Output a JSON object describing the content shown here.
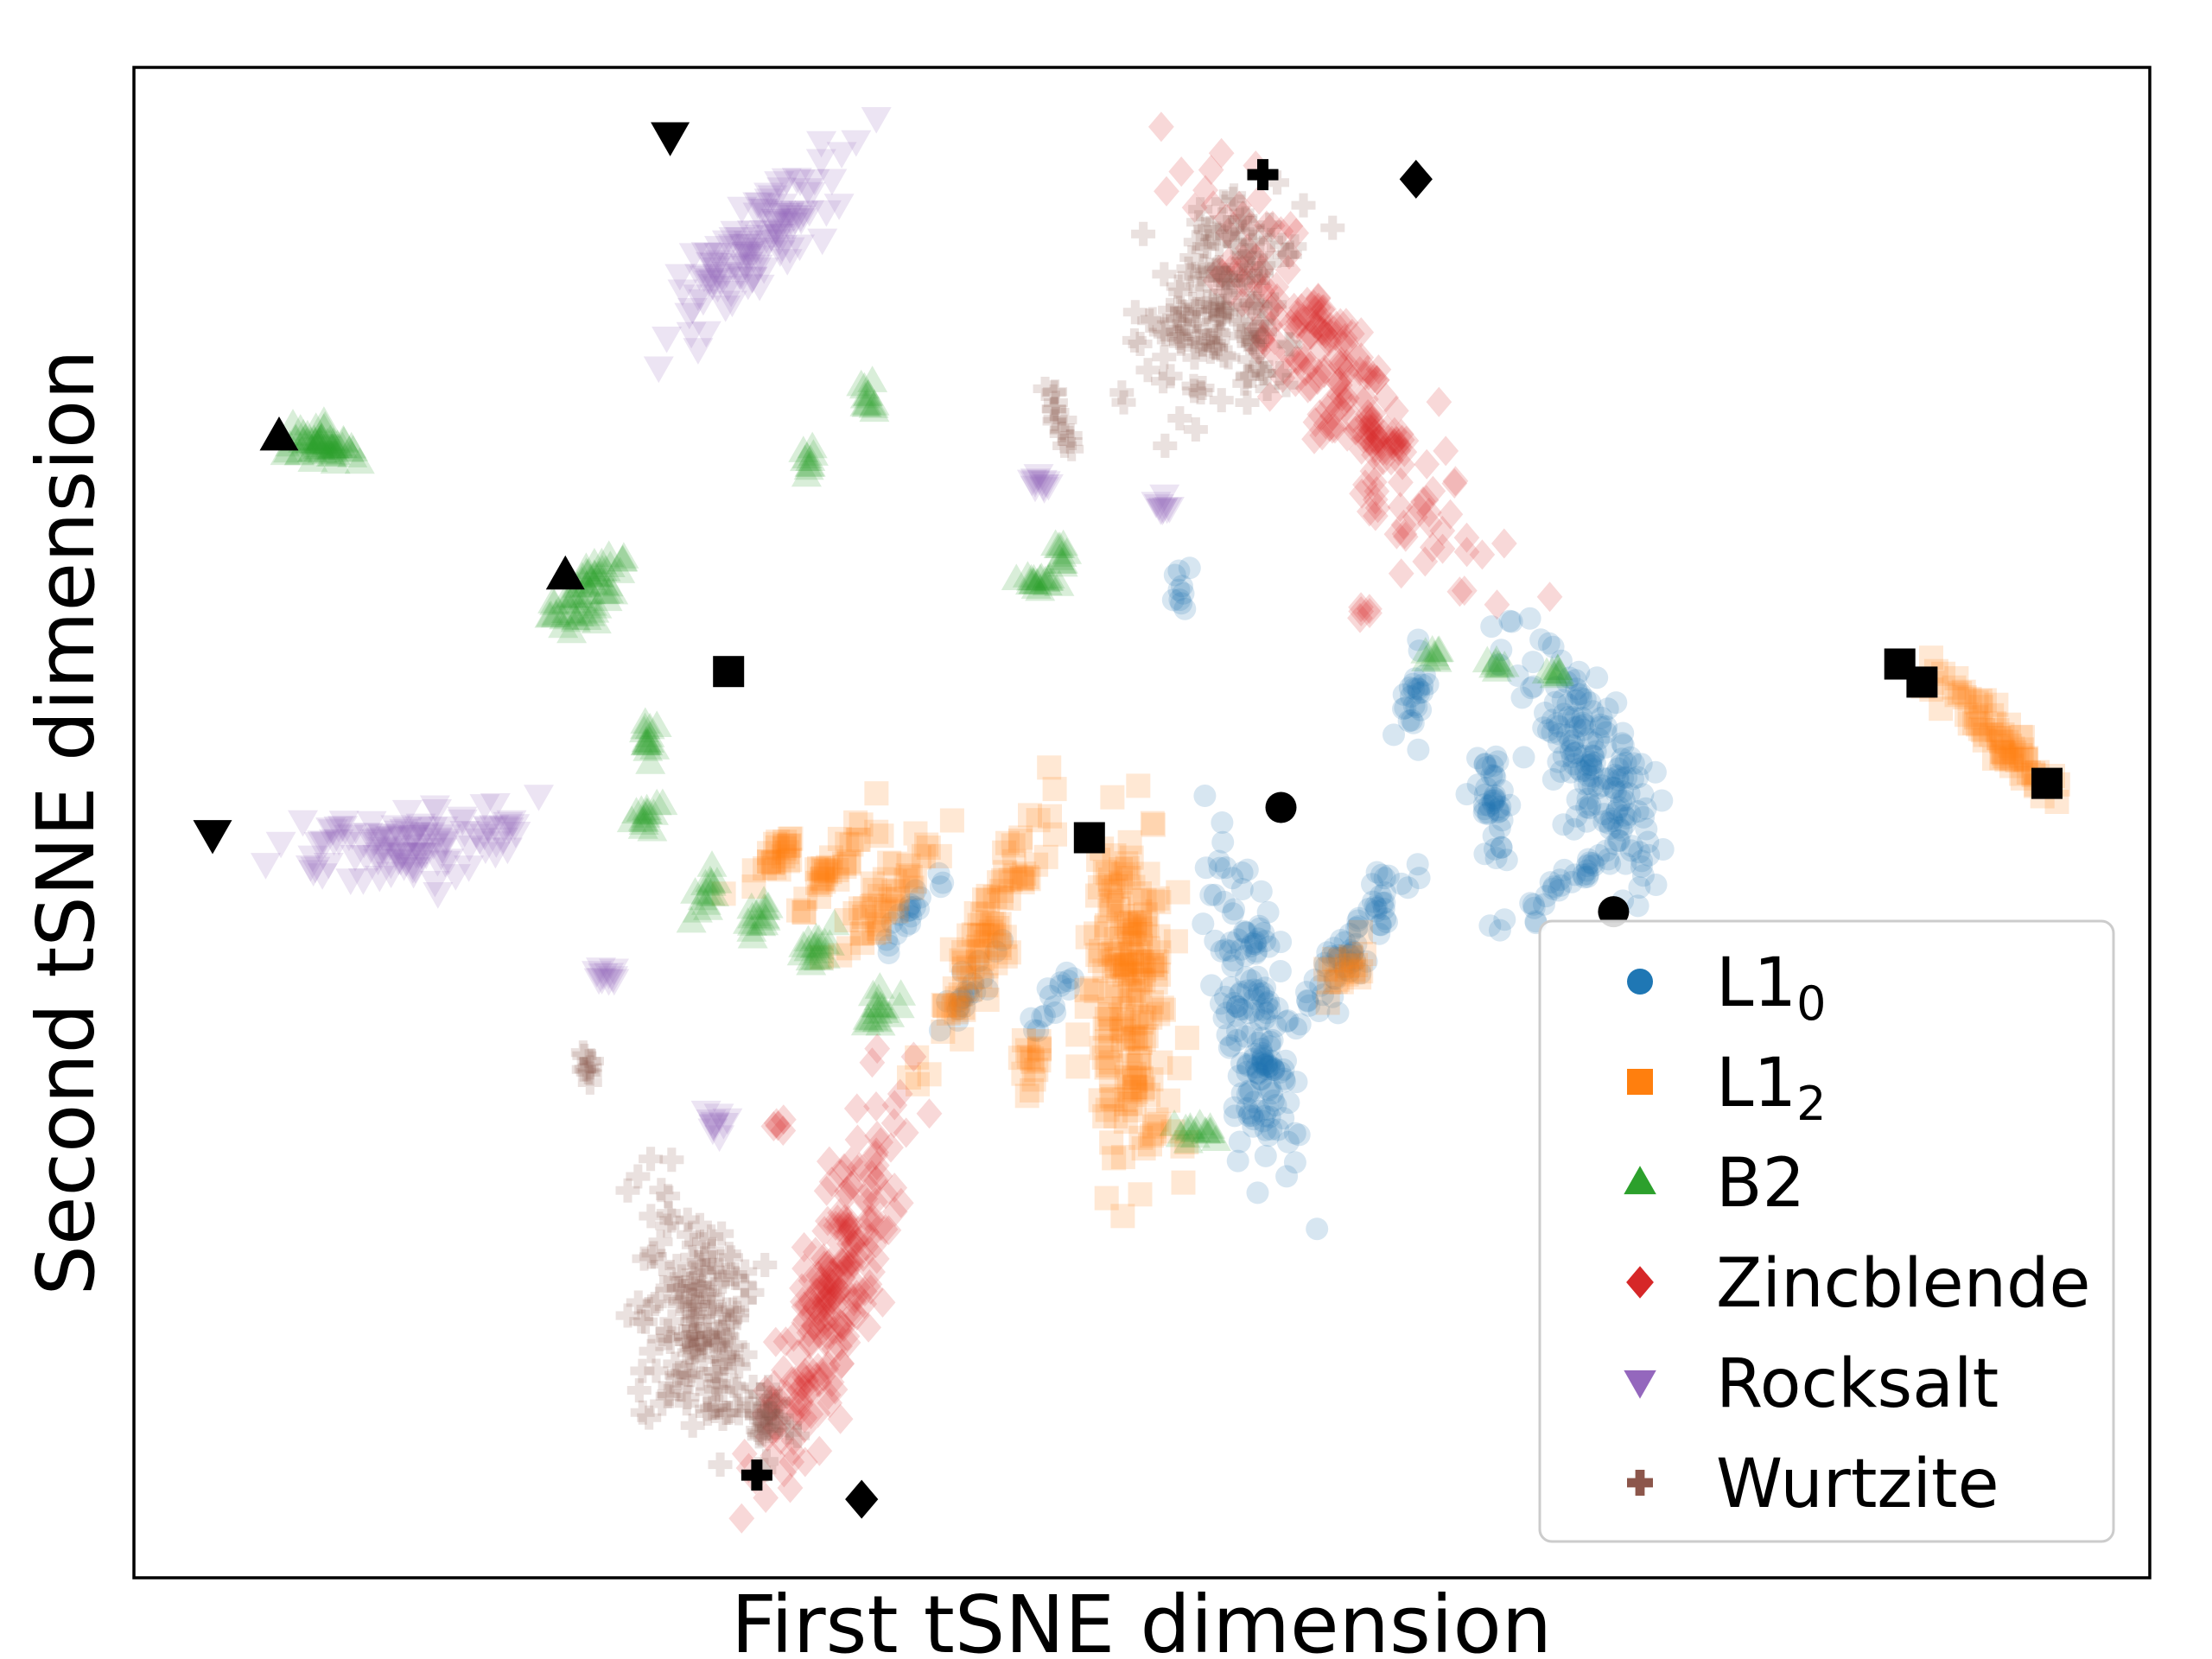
{
  "chart_data": {
    "type": "scatter",
    "title": "",
    "xlabel": "First tSNE dimension",
    "ylabel": "Second tSNE dimension",
    "xlim": [
      0,
      100
    ],
    "ylim": [
      0,
      100
    ],
    "ticks": "none",
    "grid": false,
    "legend_position": "lower-right",
    "series": [
      {
        "name": "L1",
        "subscript": "0",
        "marker": "circle",
        "color": "#1f77b4",
        "clusters": [
          {
            "cx": 55.5,
            "cy": 37,
            "rx": 2.2,
            "ry": 11,
            "rot": 8,
            "n": 170
          },
          {
            "cx": 60.5,
            "cy": 42,
            "rx": 1.2,
            "ry": 8,
            "rot": -35,
            "n": 70
          },
          {
            "cx": 72,
            "cy": 55,
            "rx": 2.8,
            "ry": 9,
            "rot": 20,
            "n": 170
          },
          {
            "cx": 67.5,
            "cy": 51,
            "rx": 0.9,
            "ry": 4,
            "rot": 5,
            "n": 40
          },
          {
            "cx": 63.5,
            "cy": 58,
            "rx": 0.8,
            "ry": 3,
            "rot": -5,
            "n": 25
          },
          {
            "cx": 71,
            "cy": 46,
            "rx": 0.9,
            "ry": 5,
            "rot": -55,
            "n": 35
          },
          {
            "cx": 41.5,
            "cy": 39,
            "rx": 0.8,
            "ry": 3,
            "rot": -40,
            "n": 20
          },
          {
            "cx": 38.5,
            "cy": 44,
            "rx": 0.8,
            "ry": 3,
            "rot": -40,
            "n": 20
          },
          {
            "cx": 52,
            "cy": 65,
            "rx": 0.8,
            "ry": 1.5,
            "rot": 0,
            "n": 10
          },
          {
            "cx": 45.5,
            "cy": 38,
            "rx": 0.8,
            "ry": 2.5,
            "rot": -30,
            "n": 15
          }
        ],
        "highlights": [
          [
            56.9,
            51.0
          ],
          [
            73.4,
            44.1
          ]
        ]
      },
      {
        "name": "L1",
        "subscript": "2",
        "marker": "square",
        "color": "#ff7f0e",
        "clusters": [
          {
            "cx": 49.5,
            "cy": 38.5,
            "rx": 2.6,
            "ry": 12,
            "rot": 3,
            "n": 200
          },
          {
            "cx": 42.5,
            "cy": 43,
            "rx": 1.5,
            "ry": 8,
            "rot": -25,
            "n": 90
          },
          {
            "cx": 37.5,
            "cy": 45,
            "rx": 1.2,
            "ry": 5,
            "rot": -40,
            "n": 45
          },
          {
            "cx": 34.5,
            "cy": 47,
            "rx": 1.0,
            "ry": 4,
            "rot": -40,
            "n": 35
          },
          {
            "cx": 32,
            "cy": 48,
            "rx": 0.8,
            "ry": 3,
            "rot": -40,
            "n": 25
          },
          {
            "cx": 60,
            "cy": 40,
            "rx": 1.0,
            "ry": 2.5,
            "rot": -20,
            "n": 20
          },
          {
            "cx": 92.5,
            "cy": 55.5,
            "rx": 1.2,
            "ry": 5.5,
            "rot": 45,
            "n": 70
          },
          {
            "cx": 44.5,
            "cy": 35,
            "rx": 0.9,
            "ry": 2.5,
            "rot": 0,
            "n": 15
          }
        ],
        "highlights": [
          [
            47.4,
            49.0
          ],
          [
            94.9,
            52.6
          ],
          [
            29.5,
            60.0
          ],
          [
            87.6,
            60.5
          ],
          [
            88.7,
            59.3
          ]
        ]
      },
      {
        "name": "B2",
        "marker": "triangle-up",
        "color": "#2ca02c",
        "clusters": [
          {
            "cx": 9.5,
            "cy": 75,
            "rx": 1.0,
            "ry": 2.8,
            "rot": 80,
            "n": 60
          },
          {
            "cx": 22.5,
            "cy": 65,
            "rx": 1.2,
            "ry": 3.2,
            "rot": -40,
            "n": 60
          },
          {
            "cx": 25.5,
            "cy": 55.5,
            "rx": 0.5,
            "ry": 1.5,
            "rot": 0,
            "n": 15
          },
          {
            "cx": 25.5,
            "cy": 50.5,
            "rx": 0.6,
            "ry": 1.2,
            "rot": -30,
            "n": 15
          },
          {
            "cx": 28.5,
            "cy": 45.5,
            "rx": 0.7,
            "ry": 1.6,
            "rot": -20,
            "n": 15
          },
          {
            "cx": 31,
            "cy": 44,
            "rx": 0.7,
            "ry": 1.5,
            "rot": -30,
            "n": 15
          },
          {
            "cx": 33.5,
            "cy": 41.5,
            "rx": 0.9,
            "ry": 1.8,
            "rot": -40,
            "n": 18
          },
          {
            "cx": 37,
            "cy": 37.5,
            "rx": 0.9,
            "ry": 1.8,
            "rot": -40,
            "n": 18
          },
          {
            "cx": 45,
            "cy": 66,
            "rx": 1.4,
            "ry": 0.6,
            "rot": 0,
            "n": 18
          },
          {
            "cx": 46,
            "cy": 68,
            "rx": 0.5,
            "ry": 1.2,
            "rot": 0,
            "n": 10
          },
          {
            "cx": 52.5,
            "cy": 29.5,
            "rx": 1.3,
            "ry": 0.6,
            "rot": -20,
            "n": 15
          },
          {
            "cx": 36.5,
            "cy": 78,
            "rx": 0.5,
            "ry": 1.5,
            "rot": 0,
            "n": 12
          },
          {
            "cx": 33.5,
            "cy": 74,
            "rx": 0.5,
            "ry": 1.0,
            "rot": 0,
            "n": 10
          },
          {
            "cx": 64.5,
            "cy": 61,
            "rx": 0.6,
            "ry": 0.5,
            "rot": 0,
            "n": 8
          },
          {
            "cx": 67.5,
            "cy": 60.5,
            "rx": 0.5,
            "ry": 0.5,
            "rot": 0,
            "n": 8
          },
          {
            "cx": 70.5,
            "cy": 60,
            "rx": 0.6,
            "ry": 0.5,
            "rot": 0,
            "n": 8
          }
        ],
        "highlights": [
          [
            7.2,
            75.6
          ],
          [
            21.4,
            66.4
          ]
        ]
      },
      {
        "name": "Zincblende",
        "marker": "diamond",
        "color": "#d62728",
        "clusters": [
          {
            "cx": 59.5,
            "cy": 80,
            "rx": 2.8,
            "ry": 14,
            "rot": 35,
            "n": 240
          },
          {
            "cx": 34.5,
            "cy": 18,
            "rx": 2.5,
            "ry": 13,
            "rot": -18,
            "n": 230
          },
          {
            "cx": 61,
            "cy": 64,
            "rx": 0.4,
            "ry": 0.5,
            "rot": 0,
            "n": 5
          },
          {
            "cx": 32,
            "cy": 30,
            "rx": 0.4,
            "ry": 0.5,
            "rot": 0,
            "n": 5
          }
        ],
        "highlights": [
          [
            63.6,
            92.6
          ],
          [
            36.1,
            5.2
          ]
        ]
      },
      {
        "name": "Rocksalt",
        "marker": "triangle-down",
        "color": "#9467bd",
        "clusters": [
          {
            "cx": 31.5,
            "cy": 89,
            "rx": 2.2,
            "ry": 8.5,
            "rot": -48,
            "n": 120
          },
          {
            "cx": 13.5,
            "cy": 48.5,
            "rx": 2.2,
            "ry": 7.5,
            "rot": -85,
            "n": 120
          },
          {
            "cx": 45,
            "cy": 72.5,
            "rx": 0.6,
            "ry": 0.7,
            "rot": 0,
            "n": 10
          },
          {
            "cx": 51,
            "cy": 71,
            "rx": 0.5,
            "ry": 0.6,
            "rot": 0,
            "n": 8
          },
          {
            "cx": 23.5,
            "cy": 40,
            "rx": 0.6,
            "ry": 0.8,
            "rot": 0,
            "n": 10
          },
          {
            "cx": 29,
            "cy": 30,
            "rx": 0.8,
            "ry": 0.8,
            "rot": 0,
            "n": 10
          }
        ],
        "highlights": [
          [
            26.6,
            95.4
          ],
          [
            3.9,
            49.2
          ]
        ]
      },
      {
        "name": "Wurtzite",
        "marker": "plus",
        "color": "#8c564b",
        "clusters": [
          {
            "cx": 54,
            "cy": 84,
            "rx": 4.5,
            "ry": 7,
            "rot": -20,
            "n": 170
          },
          {
            "cx": 28,
            "cy": 17,
            "rx": 3.5,
            "ry": 8,
            "rot": 10,
            "n": 170
          },
          {
            "cx": 31.5,
            "cy": 10,
            "rx": 1.2,
            "ry": 2.2,
            "rot": 10,
            "n": 30
          },
          {
            "cx": 46,
            "cy": 76.5,
            "rx": 0.4,
            "ry": 2.2,
            "rot": 15,
            "n": 15
          },
          {
            "cx": 22.5,
            "cy": 34,
            "rx": 0.4,
            "ry": 1.2,
            "rot": 10,
            "n": 10
          }
        ],
        "highlights": [
          [
            56.0,
            92.9
          ],
          [
            30.9,
            6.8
          ]
        ]
      }
    ]
  }
}
